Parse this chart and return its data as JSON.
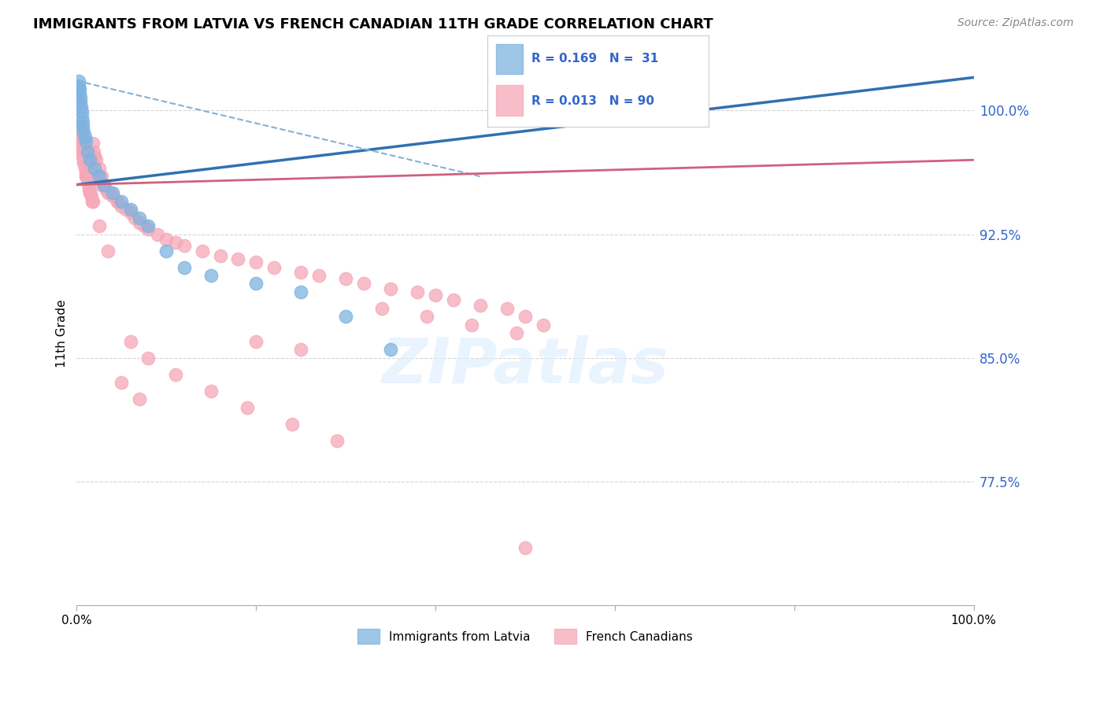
{
  "title": "IMMIGRANTS FROM LATVIA VS FRENCH CANADIAN 11TH GRADE CORRELATION CHART",
  "source": "Source: ZipAtlas.com",
  "ylabel": "11th Grade",
  "xlim": [
    0.0,
    100.0
  ],
  "ylim": [
    70.0,
    103.0
  ],
  "yticks": [
    77.5,
    85.0,
    92.5,
    100.0
  ],
  "ytick_labels": [
    "77.5%",
    "85.0%",
    "92.5%",
    "100.0%"
  ],
  "xticks": [
    0,
    20,
    40,
    60,
    80,
    100
  ],
  "xtick_labels": [
    "0.0%",
    "",
    "",
    "",
    "",
    "100.0%"
  ],
  "blue_color": "#7EB3E0",
  "pink_color": "#F5A8B8",
  "blue_line_color": "#3070B0",
  "pink_line_color": "#D06080",
  "blue_dash_color": "#7EB3E0",
  "background_color": "#FFFFFF",
  "watermark": "ZIPatlas",
  "blue_label": "Immigrants from Latvia",
  "pink_label": "French Canadians",
  "legend_blue_text": "R = 0.169   N =  31",
  "legend_pink_text": "R = 0.013   N = 90",
  "blue_trend": [
    0.0,
    100.0,
    95.5,
    102.0
  ],
  "blue_dash": [
    0.0,
    45.0,
    101.8,
    96.0
  ],
  "pink_trend": [
    0.0,
    100.0,
    95.5,
    97.0
  ]
}
